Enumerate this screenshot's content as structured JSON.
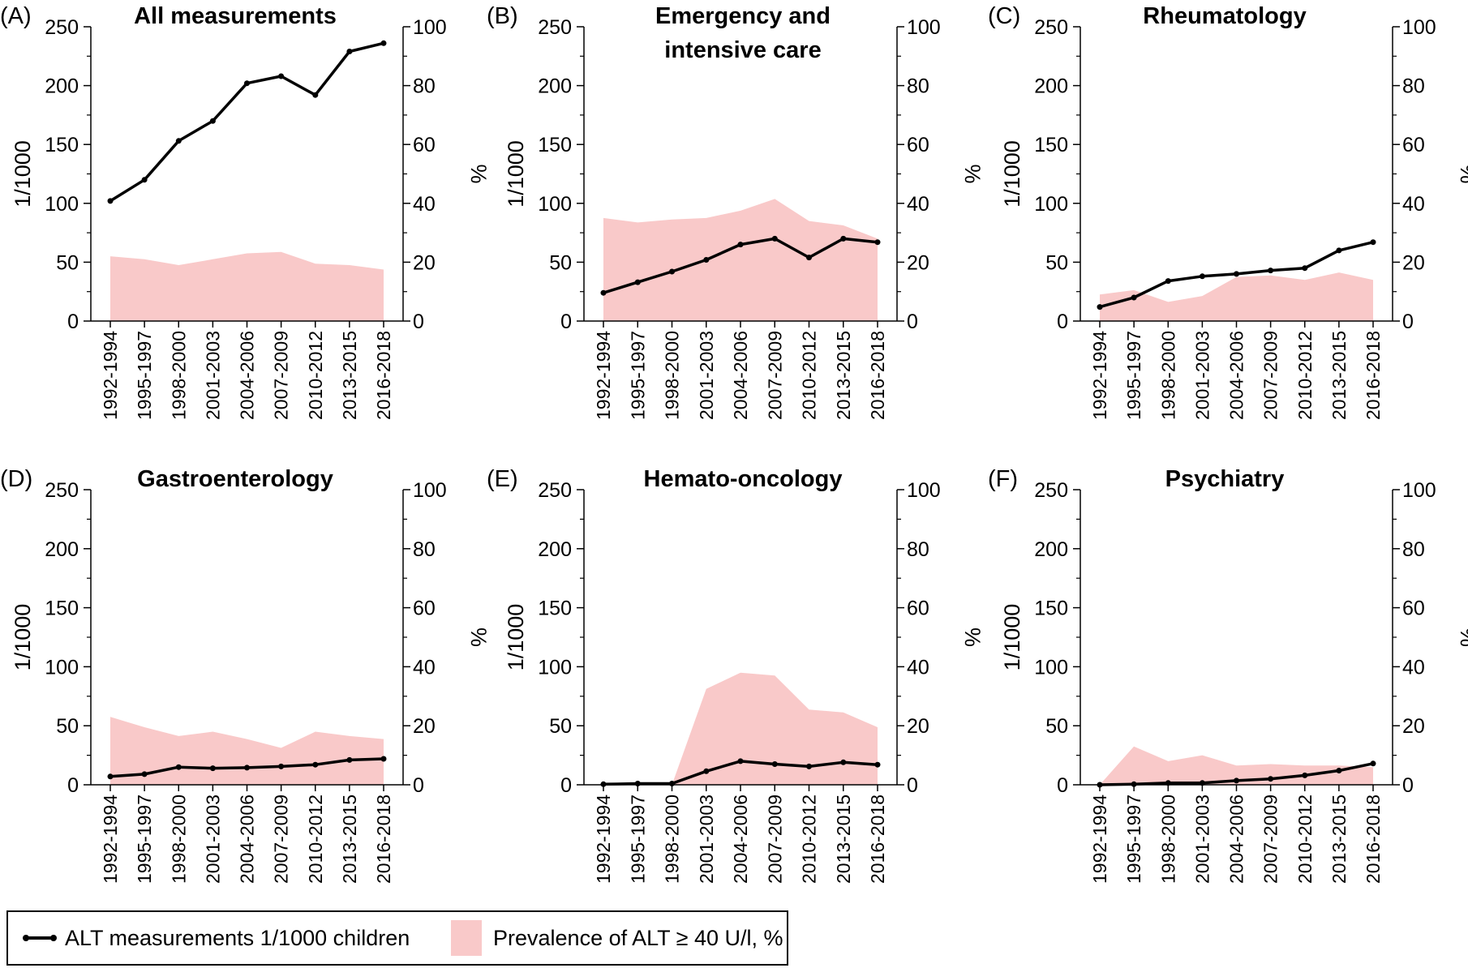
{
  "colors": {
    "line": "#000000",
    "area": "#f9c9c9"
  },
  "legend": {
    "line_label": "ALT measurements 1/1000 children",
    "area_label": "Prevalence of ALT ≥ 40 U/l, %"
  },
  "chart_data": [
    {
      "type": "line",
      "panel_label": "(A)",
      "title": [
        "All measurements"
      ],
      "categories": [
        "1992-1994",
        "1995-1997",
        "1998-2000",
        "2001-2003",
        "2004-2006",
        "2007-2009",
        "2010-2012",
        "2013-2015",
        "2016-2018"
      ],
      "ylabel": "1/1000",
      "y2label": "%",
      "ylim": [
        0,
        250
      ],
      "y2lim": [
        0,
        100
      ],
      "yticks": [
        "0",
        "50",
        "100",
        "150",
        "200",
        "250"
      ],
      "y2ticks": [
        "0",
        "20",
        "40",
        "60",
        "80",
        "100"
      ],
      "series": [
        {
          "name": "ALT measurements 1/1000 children",
          "axis": "left",
          "style": "line-markers",
          "values": [
            102,
            120,
            153,
            170,
            202,
            208,
            192,
            229,
            236
          ]
        },
        {
          "name": "Prevalence of ALT ≥ 40 U/l, %",
          "axis": "right",
          "style": "area",
          "values": [
            22,
            21,
            19,
            21,
            23,
            23.5,
            19.5,
            19,
            17.5
          ]
        }
      ]
    },
    {
      "type": "line",
      "panel_label": "(B)",
      "title": [
        "Emergency and",
        "intensive care"
      ],
      "categories": [
        "1992-1994",
        "1995-1997",
        "1998-2000",
        "2001-2003",
        "2004-2006",
        "2007-2009",
        "2010-2012",
        "2013-2015",
        "2016-2018"
      ],
      "ylabel": "1/1000",
      "y2label": "%",
      "ylim": [
        0,
        250
      ],
      "y2lim": [
        0,
        100
      ],
      "yticks": [
        "0",
        "50",
        "100",
        "150",
        "200",
        "250"
      ],
      "y2ticks": [
        "0",
        "20",
        "40",
        "60",
        "80",
        "100"
      ],
      "series": [
        {
          "name": "ALT measurements 1/1000 children",
          "axis": "left",
          "style": "line-markers",
          "values": [
            24,
            33,
            42,
            52,
            65,
            70,
            54,
            70,
            67
          ]
        },
        {
          "name": "Prevalence of ALT ≥ 40 U/l, %",
          "axis": "right",
          "style": "area",
          "values": [
            35,
            33.5,
            34.5,
            35,
            37.5,
            41.5,
            34,
            32.5,
            28
          ]
        }
      ]
    },
    {
      "type": "line",
      "panel_label": "(C)",
      "title": [
        "Rheumatology"
      ],
      "categories": [
        "1992-1994",
        "1995-1997",
        "1998-2000",
        "2001-2003",
        "2004-2006",
        "2007-2009",
        "2010-2012",
        "2013-2015",
        "2016-2018"
      ],
      "ylabel": "1/1000",
      "y2label": "%",
      "ylim": [
        0,
        250
      ],
      "y2lim": [
        0,
        100
      ],
      "yticks": [
        "0",
        "50",
        "100",
        "150",
        "200",
        "250"
      ],
      "y2ticks": [
        "0",
        "20",
        "40",
        "60",
        "80",
        "100"
      ],
      "series": [
        {
          "name": "ALT measurements 1/1000 children",
          "axis": "left",
          "style": "line-markers",
          "values": [
            12,
            20,
            34,
            38,
            40,
            43,
            45,
            60,
            67
          ]
        },
        {
          "name": "Prevalence of ALT ≥ 40 U/l, %",
          "axis": "right",
          "style": "area",
          "values": [
            9,
            10.5,
            6.5,
            8.5,
            15,
            15.5,
            14,
            16.5,
            14
          ]
        }
      ]
    },
    {
      "type": "line",
      "panel_label": "(D)",
      "title": [
        "Gastroenterology"
      ],
      "categories": [
        "1992-1994",
        "1995-1997",
        "1998-2000",
        "2001-2003",
        "2004-2006",
        "2007-2009",
        "2010-2012",
        "2013-2015",
        "2016-2018"
      ],
      "ylabel": "1/1000",
      "y2label": "%",
      "ylim": [
        0,
        250
      ],
      "y2lim": [
        0,
        100
      ],
      "yticks": [
        "0",
        "50",
        "100",
        "150",
        "200",
        "250"
      ],
      "y2ticks": [
        "0",
        "20",
        "40",
        "60",
        "80",
        "100"
      ],
      "series": [
        {
          "name": "ALT measurements 1/1000 children",
          "axis": "left",
          "style": "line-markers",
          "values": [
            7,
            9,
            15,
            14,
            14.5,
            15.5,
            17,
            21,
            22
          ]
        },
        {
          "name": "Prevalence of ALT ≥ 40 U/l, %",
          "axis": "right",
          "style": "area",
          "values": [
            23,
            19.5,
            16.5,
            18,
            15.5,
            12.5,
            18,
            16.5,
            15.5
          ]
        }
      ]
    },
    {
      "type": "line",
      "panel_label": "(E)",
      "title": [
        "Hemato-oncology"
      ],
      "categories": [
        "1992-1994",
        "1995-1997",
        "1998-2000",
        "2001-2003",
        "2004-2006",
        "2007-2009",
        "2010-2012",
        "2013-2015",
        "2016-2018"
      ],
      "ylabel": "1/1000",
      "y2label": "%",
      "ylim": [
        0,
        250
      ],
      "y2lim": [
        0,
        100
      ],
      "yticks": [
        "0",
        "50",
        "100",
        "150",
        "200",
        "250"
      ],
      "y2ticks": [
        "0",
        "20",
        "40",
        "60",
        "80",
        "100"
      ],
      "series": [
        {
          "name": "ALT measurements 1/1000 children",
          "axis": "left",
          "style": "line-markers",
          "values": [
            0.5,
            1,
            1,
            11.5,
            20,
            17.5,
            15.5,
            19,
            17
          ]
        },
        {
          "name": "Prevalence of ALT ≥ 40 U/l, %",
          "axis": "right",
          "style": "area",
          "values": [
            0,
            0,
            0,
            32.5,
            38,
            37,
            25.5,
            24.5,
            19.5
          ]
        }
      ]
    },
    {
      "type": "line",
      "panel_label": "(F)",
      "title": [
        "Psychiatry"
      ],
      "categories": [
        "1992-1994",
        "1995-1997",
        "1998-2000",
        "2001-2003",
        "2004-2006",
        "2007-2009",
        "2010-2012",
        "2013-2015",
        "2016-2018"
      ],
      "ylabel": "1/1000",
      "y2label": "%",
      "ylim": [
        0,
        250
      ],
      "y2lim": [
        0,
        100
      ],
      "yticks": [
        "0",
        "50",
        "100",
        "150",
        "200",
        "250"
      ],
      "y2ticks": [
        "0",
        "20",
        "40",
        "60",
        "80",
        "100"
      ],
      "series": [
        {
          "name": "ALT measurements 1/1000 children",
          "axis": "left",
          "style": "line-markers",
          "values": [
            0,
            0.5,
            1.5,
            1.5,
            3.5,
            5,
            8,
            12,
            18
          ]
        },
        {
          "name": "Prevalence of ALT ≥ 40 U/l, %",
          "axis": "right",
          "style": "area",
          "values": [
            0,
            13,
            8,
            10,
            6.5,
            7,
            6.5,
            6.5,
            6
          ]
        }
      ]
    }
  ]
}
